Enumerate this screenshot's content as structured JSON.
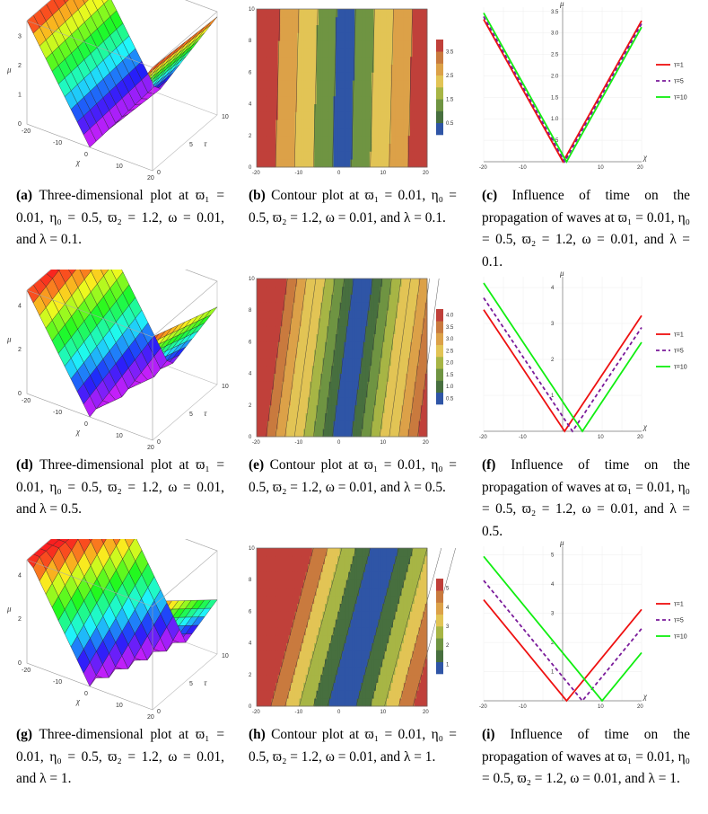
{
  "figure": {
    "colors": {
      "t1": "#ee1111",
      "t5": "#7a1a9a",
      "t10": "#11ee11",
      "contour": [
        "#2f55a6",
        "#476f3f",
        "#6f9442",
        "#a7b545",
        "#e2c455",
        "#dca148",
        "#c97a3e",
        "#c0403a"
      ]
    },
    "rows": [
      {
        "surface": {
          "caption_label": "(a)",
          "caption_text": "Three-dimensional plot at ϖ₁ = 0.01, η₀ = 0.5, ϖ₂ = 1.2, ω = 0.01, and λ = 0.1.",
          "axis_labels": {
            "u": "μ",
            "x": "χ",
            "t": "τ"
          },
          "u_ticks": [
            "0",
            "1",
            "2",
            "3"
          ],
          "x_ticks": [
            "-20",
            "-10",
            "0",
            "10",
            "20"
          ],
          "t_ticks": [
            "0",
            "5",
            "10"
          ]
        },
        "contour": {
          "caption_label": "(b)",
          "caption_text": "Contour plot at ϖ₁ = 0.01, η₀ = 0.5, ϖ₂ = 1.2, ω = 0.01, and λ = 0.1.",
          "x_ticks": [
            "-20",
            "-10",
            "0",
            "10",
            "20"
          ],
          "y_ticks": [
            "0",
            "2",
            "4",
            "6",
            "8",
            "10"
          ],
          "legend_ticks": [
            "0.5",
            "1.5",
            "2.5",
            "3.5"
          ]
        },
        "lines": {
          "caption_label": "(c)",
          "caption_text": "Influence of time on the propagation of waves at ϖ₁ = 0.01, η₀ = 0.5, ϖ₂ = 1.2, ω = 0.01, and λ = 0.1.",
          "axis_labels": {
            "x": "χ",
            "y": "μ"
          },
          "x_ticks": [
            "-20",
            "-10",
            "10",
            "20"
          ],
          "y_ticks": [
            "0.5",
            "1.0",
            "1.5",
            "2.0",
            "2.5",
            "3.0",
            "3.5"
          ],
          "legend": [
            "τ=1",
            "τ=5",
            "τ=10"
          ]
        }
      },
      {
        "surface": {
          "caption_label": "(d)",
          "caption_text": "Three-dimensional plot at ϖ₁ = 0.01, η₀ = 0.5, ϖ₂ = 1.2, ω = 0.01, and λ = 0.5.",
          "axis_labels": {
            "u": "μ",
            "x": "χ",
            "t": "τ"
          },
          "u_ticks": [
            "0",
            "2",
            "4"
          ],
          "x_ticks": [
            "-20",
            "-10",
            "0",
            "10",
            "20"
          ],
          "t_ticks": [
            "0",
            "5",
            "10"
          ]
        },
        "contour": {
          "caption_label": "(e)",
          "caption_text": "Contour plot at ϖ₁ = 0.01, η₀ = 0.5, ϖ₂ = 1.2, ω = 0.01, and λ = 0.5.",
          "x_ticks": [
            "-20",
            "-10",
            "0",
            "10",
            "20"
          ],
          "y_ticks": [
            "0",
            "2",
            "4",
            "6",
            "8",
            "10"
          ],
          "legend_ticks": [
            "0.5",
            "1.0",
            "1.5",
            "2.0",
            "2.5",
            "3.0",
            "3.5",
            "4.0"
          ]
        },
        "lines": {
          "caption_label": "(f)",
          "caption_text": "Influence of time on the propagation of waves at ϖ₁ = 0.01, η₀ = 0.5, ϖ₂ = 1.2, ω = 0.01, and λ = 0.5.",
          "axis_labels": {
            "x": "χ",
            "y": "μ"
          },
          "x_ticks": [
            "-20",
            "-10",
            "10",
            "20"
          ],
          "y_ticks": [
            "1",
            "2",
            "3",
            "4"
          ],
          "legend": [
            "τ=1",
            "τ=5",
            "τ=10"
          ]
        }
      },
      {
        "surface": {
          "caption_label": "(g)",
          "caption_text": "Three-dimensional plot at ϖ₁ = 0.01, η₀ = 0.5, ϖ₂ = 1.2, ω = 0.01, and λ = 1.",
          "axis_labels": {
            "u": "μ",
            "x": "χ",
            "t": "τ"
          },
          "u_ticks": [
            "0",
            "2",
            "4"
          ],
          "x_ticks": [
            "-20",
            "-10",
            "0",
            "10",
            "20"
          ],
          "t_ticks": [
            "0",
            "5",
            "10"
          ]
        },
        "contour": {
          "caption_label": "(h)",
          "caption_text": "Contour plot at ϖ₁ = 0.01, η₀ = 0.5, ϖ₂ = 1.2, ω = 0.01, and λ = 1.",
          "x_ticks": [
            "-20",
            "-10",
            "0",
            "10",
            "20"
          ],
          "y_ticks": [
            "0",
            "2",
            "4",
            "6",
            "8",
            "10"
          ],
          "legend_ticks": [
            "1",
            "2",
            "3",
            "4",
            "5"
          ]
        },
        "lines": {
          "caption_label": "(i)",
          "caption_text": "Influence of time on the propagation of waves at ϖ₁ = 0.01, η₀ = 0.5, ϖ₂ = 1.2, ω = 0.01, and λ = 1.",
          "axis_labels": {
            "x": "χ",
            "y": "μ"
          },
          "x_ticks": [
            "-20",
            "-10",
            "10",
            "20"
          ],
          "y_ticks": [
            "1",
            "2",
            "3",
            "4",
            "5"
          ],
          "legend": [
            "τ=1",
            "τ=5",
            "τ=10"
          ]
        }
      }
    ]
  },
  "chart_data": [
    {
      "type": "surface",
      "panel": "a",
      "title": "",
      "x_range": [
        -20,
        20
      ],
      "t_range": [
        0,
        10
      ],
      "function": "mu = |chi - 0.1*t|",
      "zlim": [
        0,
        3.5
      ]
    },
    {
      "type": "heatmap",
      "panel": "b",
      "x_range": [
        -20,
        20
      ],
      "y_range": [
        0,
        10
      ],
      "levels": [
        0.5,
        1.5,
        2.5,
        3.5
      ],
      "lambda": 0.1
    },
    {
      "type": "line",
      "panel": "c",
      "xlabel": "χ",
      "ylabel": "μ",
      "xlim": [
        -20,
        20
      ],
      "ylim": [
        0,
        3.6
      ],
      "series": [
        {
          "name": "τ=1",
          "slope": 0.165,
          "shift": 0.1
        },
        {
          "name": "τ=5",
          "slope": 0.165,
          "shift": 0.5
        },
        {
          "name": "τ=10",
          "slope": 0.165,
          "shift": 1.0
        }
      ]
    },
    {
      "type": "surface",
      "panel": "d",
      "x_range": [
        -20,
        20
      ],
      "t_range": [
        0,
        10
      ],
      "function": "mu = |chi - 0.5*t|",
      "zlim": [
        0,
        4.5
      ]
    },
    {
      "type": "heatmap",
      "panel": "e",
      "x_range": [
        -20,
        20
      ],
      "y_range": [
        0,
        10
      ],
      "levels": [
        0.5,
        1.0,
        1.5,
        2.0,
        2.5,
        3.0,
        3.5,
        4.0
      ],
      "lambda": 0.5
    },
    {
      "type": "line",
      "panel": "f",
      "xlabel": "χ",
      "ylabel": "μ",
      "xlim": [
        -20,
        20
      ],
      "ylim": [
        0,
        4.3
      ],
      "series": [
        {
          "name": "τ=1",
          "slope": 0.165,
          "shift": 0.5
        },
        {
          "name": "τ=5",
          "slope": 0.165,
          "shift": 2.5
        },
        {
          "name": "τ=10",
          "slope": 0.165,
          "shift": 5.0
        }
      ]
    },
    {
      "type": "surface",
      "panel": "g",
      "x_range": [
        -20,
        20
      ],
      "t_range": [
        0,
        10
      ],
      "function": "mu = |chi - t|",
      "zlim": [
        0,
        5.5
      ]
    },
    {
      "type": "heatmap",
      "panel": "h",
      "x_range": [
        -20,
        20
      ],
      "y_range": [
        0,
        10
      ],
      "levels": [
        1,
        2,
        3,
        4,
        5
      ],
      "lambda": 1
    },
    {
      "type": "line",
      "panel": "i",
      "xlabel": "χ",
      "ylabel": "μ",
      "xlim": [
        -20,
        20
      ],
      "ylim": [
        0,
        5.3
      ],
      "series": [
        {
          "name": "τ=1",
          "slope": 0.165,
          "shift": 1
        },
        {
          "name": "τ=5",
          "slope": 0.165,
          "shift": 5
        },
        {
          "name": "τ=10",
          "slope": 0.165,
          "shift": 10
        }
      ]
    }
  ]
}
